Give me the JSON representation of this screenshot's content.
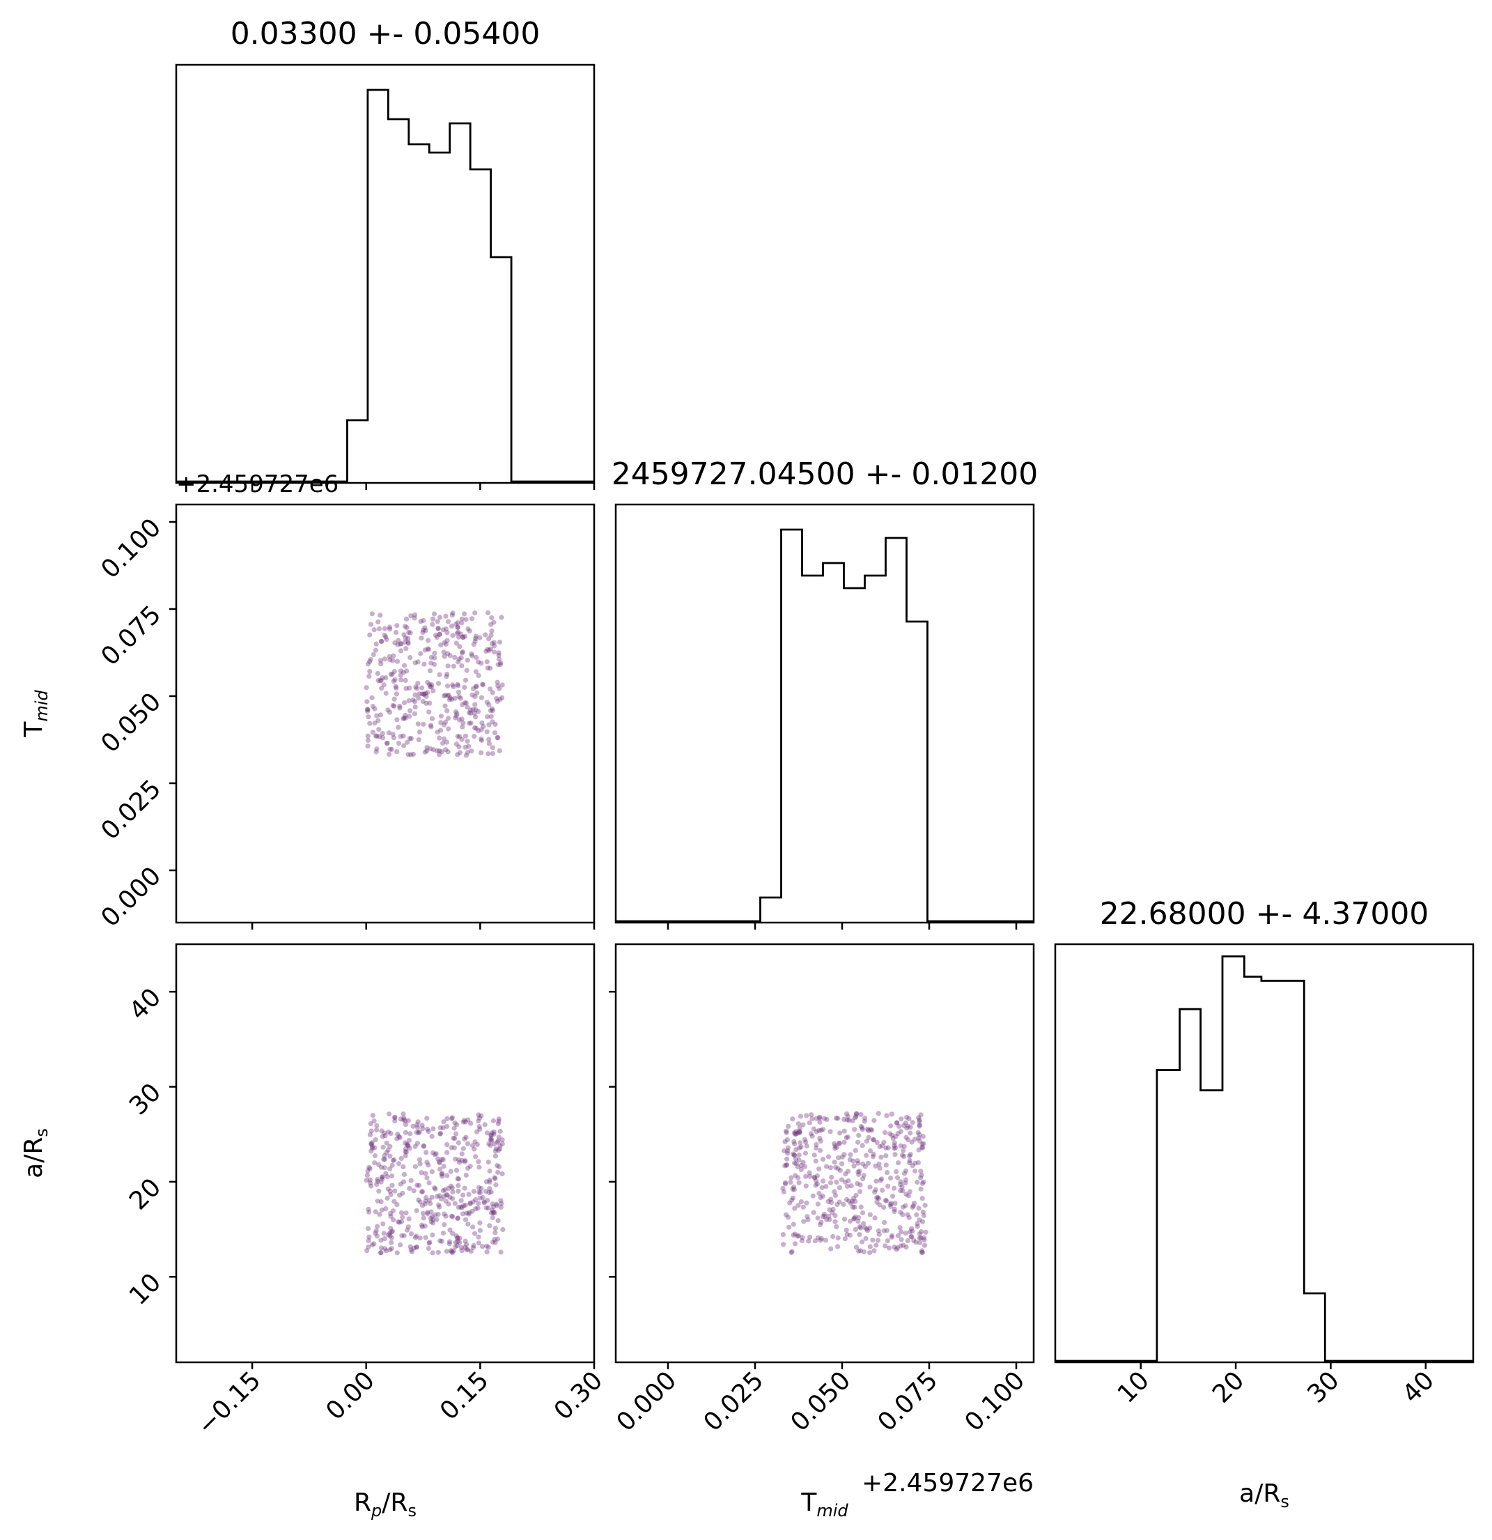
{
  "chart_data": [
    {
      "type": "histogram",
      "panel": "rp-hist",
      "title": "0.03300 +- 0.05400",
      "xlim": [
        -0.25,
        0.3
      ],
      "bins": [
        {
          "x0": -0.025,
          "x1": 0.002,
          "count": 15
        },
        {
          "x0": 0.002,
          "x1": 0.029,
          "count": 94
        },
        {
          "x0": 0.029,
          "x1": 0.056,
          "count": 87
        },
        {
          "x0": 0.056,
          "x1": 0.083,
          "count": 81
        },
        {
          "x0": 0.083,
          "x1": 0.11,
          "count": 79
        },
        {
          "x0": 0.11,
          "x1": 0.137,
          "count": 86
        },
        {
          "x0": 0.137,
          "x1": 0.164,
          "count": 75
        },
        {
          "x0": 0.164,
          "x1": 0.191,
          "count": 54
        }
      ],
      "hist_max": 100,
      "ticks": [
        -0.15,
        0.0,
        0.15,
        0.3
      ]
    },
    {
      "type": "scatter",
      "panel": "rp-tmid",
      "offset_label": "+2.459727e6",
      "xlim": [
        -0.25,
        0.3
      ],
      "ylim": [
        -0.015,
        0.105
      ],
      "x_range": [
        0.0,
        0.18
      ],
      "y_range": [
        0.033,
        0.074
      ],
      "n_points": 430,
      "yticks": [
        "0.000",
        "0.025",
        "0.050",
        "0.075",
        "0.100"
      ],
      "yticks_values": [
        0.0,
        0.025,
        0.05,
        0.075,
        0.1
      ],
      "ylabel_main": "T",
      "ylabel_sub": "mid"
    },
    {
      "type": "histogram",
      "panel": "tmid-hist",
      "title": "2459727.04500 +- 0.01200",
      "xlim": [
        -0.015,
        0.105
      ],
      "bins": [
        {
          "x0": 0.0265,
          "x1": 0.0325,
          "count": 6
        },
        {
          "x0": 0.0325,
          "x1": 0.0385,
          "count": 94
        },
        {
          "x0": 0.0385,
          "x1": 0.0445,
          "count": 83
        },
        {
          "x0": 0.0445,
          "x1": 0.0505,
          "count": 86
        },
        {
          "x0": 0.0505,
          "x1": 0.0565,
          "count": 80
        },
        {
          "x0": 0.0565,
          "x1": 0.0625,
          "count": 83
        },
        {
          "x0": 0.0625,
          "x1": 0.0685,
          "count": 92
        },
        {
          "x0": 0.0685,
          "x1": 0.0745,
          "count": 72
        }
      ],
      "hist_max": 100,
      "ticks": [
        0.0,
        0.025,
        0.05,
        0.075,
        0.1
      ]
    },
    {
      "type": "scatter",
      "panel": "rp-ars",
      "xlim": [
        -0.25,
        0.3
      ],
      "ylim": [
        1.0,
        45.0
      ],
      "x_range": [
        0.0,
        0.18
      ],
      "y_range": [
        12.5,
        27.2
      ],
      "n_points": 480,
      "yticks": [
        "10",
        "20",
        "30",
        "40"
      ],
      "yticks_values": [
        10,
        20,
        30,
        40
      ],
      "xticks": [
        "−0.15",
        "0.00",
        "0.15",
        "0.30"
      ],
      "xticks_values": [
        -0.15,
        0.0,
        0.15,
        0.3
      ],
      "xlabel_main": "R",
      "xlabel_sub": "p",
      "xlabel_tail": "/R",
      "xlabel_sub2": "s",
      "ylabel_main": "a/R",
      "ylabel_sub": "s"
    },
    {
      "type": "scatter",
      "panel": "tmid-ars",
      "xlim": [
        -0.015,
        0.105
      ],
      "ylim": [
        1.0,
        45.0
      ],
      "x_range": [
        0.033,
        0.074
      ],
      "y_range": [
        12.5,
        27.2
      ],
      "n_points": 480,
      "xticks": [
        "0.000",
        "0.025",
        "0.050",
        "0.075",
        "0.100"
      ],
      "xticks_values": [
        0.0,
        0.025,
        0.05,
        0.075,
        0.1
      ],
      "xlabel_main": "T",
      "xlabel_sub": "mid",
      "offset_label": "+2.459727e6"
    },
    {
      "type": "histogram",
      "panel": "ars-hist",
      "title": "22.68000 +- 4.37000",
      "xlim": [
        1.0,
        45.0
      ],
      "bins": [
        {
          "x0": 11.7,
          "x1": 14.1,
          "count": 72
        },
        {
          "x0": 14.1,
          "x1": 16.3,
          "count": 87
        },
        {
          "x0": 16.3,
          "x1": 18.6,
          "count": 67
        },
        {
          "x0": 18.6,
          "x1": 20.9,
          "count": 100
        },
        {
          "x0": 20.9,
          "x1": 22.7,
          "count": 95
        },
        {
          "x0": 22.7,
          "x1": 27.2,
          "count": 94
        },
        {
          "x0": 27.2,
          "x1": 29.4,
          "count": 17
        }
      ],
      "hist_max": 103,
      "xticks": [
        "10",
        "20",
        "30",
        "40"
      ],
      "xticks_values": [
        10,
        20,
        30,
        40
      ],
      "xlabel_main": "a/R",
      "xlabel_sub": "s"
    }
  ],
  "colors": {
    "axes": "#000000",
    "hist_line": "#000000",
    "scatter": "#6b2d7b"
  }
}
